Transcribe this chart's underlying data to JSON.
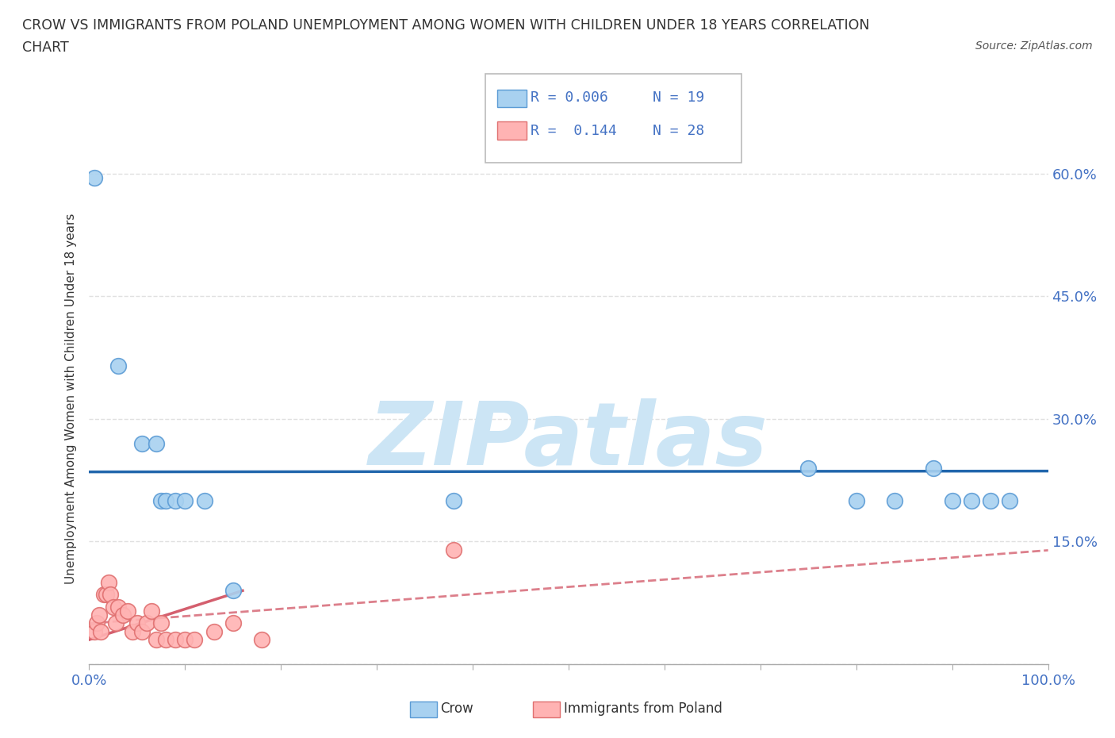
{
  "title_line1": "CROW VS IMMIGRANTS FROM POLAND UNEMPLOYMENT AMONG WOMEN WITH CHILDREN UNDER 18 YEARS CORRELATION",
  "title_line2": "CHART",
  "source": "Source: ZipAtlas.com",
  "ylabel": "Unemployment Among Women with Children Under 18 years",
  "xlim": [
    0.0,
    1.0
  ],
  "ylim": [
    0.0,
    0.65
  ],
  "xticks": [
    0.0,
    0.1,
    0.2,
    0.3,
    0.4,
    0.5,
    0.6,
    0.7,
    0.8,
    0.9,
    1.0
  ],
  "xtick_labels": [
    "0.0%",
    "",
    "",
    "",
    "",
    "",
    "",
    "",
    "",
    "",
    "100.0%"
  ],
  "yticks": [
    0.0,
    0.15,
    0.3,
    0.45,
    0.6
  ],
  "ytick_labels": [
    "",
    "15.0%",
    "30.0%",
    "45.0%",
    "60.0%"
  ],
  "crow_color": "#a8d1f0",
  "crow_edge_color": "#5b9bd5",
  "poland_color": "#ffb3b3",
  "poland_edge_color": "#e07070",
  "trend_crow_color": "#2166ac",
  "trend_poland_color": "#d45f6e",
  "trend_poland_solid_color": "#d45f6e",
  "legend_crow_R": "R = 0.006",
  "legend_crow_N": "N = 19",
  "legend_poland_R": "R =  0.144",
  "legend_poland_N": "N = 28",
  "crow_x": [
    0.005,
    0.03,
    0.055,
    0.07,
    0.075,
    0.08,
    0.09,
    0.1,
    0.12,
    0.15,
    0.38,
    0.75,
    0.8,
    0.84,
    0.88,
    0.9,
    0.92,
    0.94,
    0.96
  ],
  "crow_y": [
    0.595,
    0.365,
    0.27,
    0.27,
    0.2,
    0.2,
    0.2,
    0.2,
    0.2,
    0.09,
    0.2,
    0.24,
    0.2,
    0.2,
    0.24,
    0.2,
    0.2,
    0.2,
    0.2
  ],
  "poland_x": [
    0.005,
    0.008,
    0.01,
    0.012,
    0.015,
    0.018,
    0.02,
    0.022,
    0.025,
    0.028,
    0.03,
    0.035,
    0.04,
    0.045,
    0.05,
    0.055,
    0.06,
    0.065,
    0.07,
    0.075,
    0.08,
    0.09,
    0.1,
    0.11,
    0.13,
    0.15,
    0.18,
    0.38
  ],
  "poland_y": [
    0.04,
    0.05,
    0.06,
    0.04,
    0.085,
    0.085,
    0.1,
    0.085,
    0.07,
    0.05,
    0.07,
    0.06,
    0.065,
    0.04,
    0.05,
    0.04,
    0.05,
    0.065,
    0.03,
    0.05,
    0.03,
    0.03,
    0.03,
    0.03,
    0.04,
    0.05,
    0.03,
    0.14
  ],
  "watermark_text": "ZIPatlas",
  "watermark_color": "#cce5f5",
  "background_color": "#ffffff",
  "grid_color": "#e0e0e0",
  "title_color": "#333333",
  "axis_color": "#4472c4",
  "legend_text_color": "#4472c4"
}
